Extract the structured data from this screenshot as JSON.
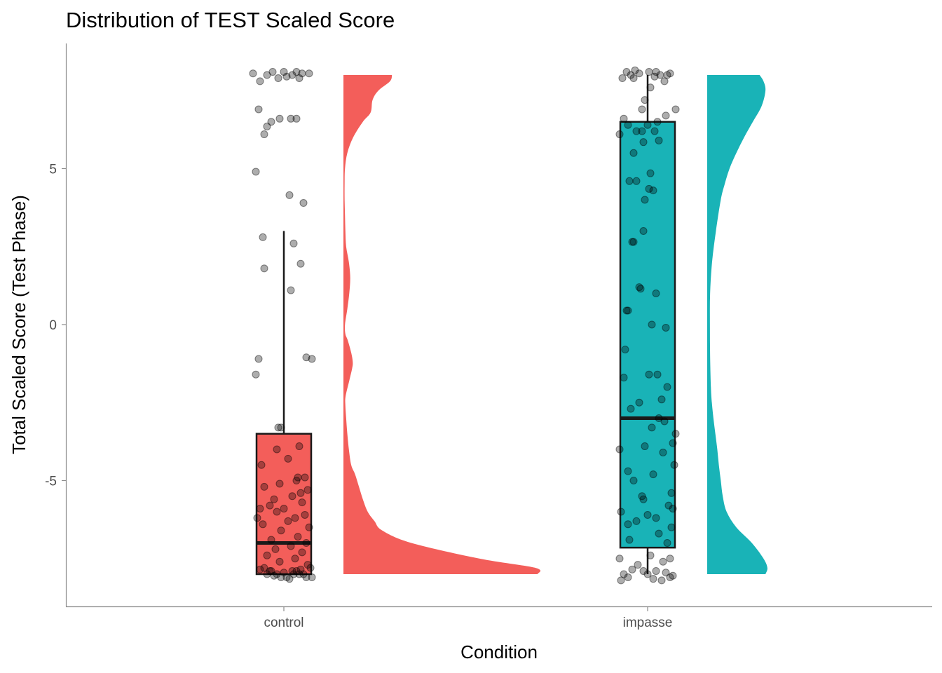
{
  "chart_data": {
    "type": "raincloud",
    "title": "Distribution of TEST Scaled Score",
    "xlabel": "Condition",
    "ylabel": "Total Scaled Score (Test Phase)",
    "ylim": [
      -8.9,
      9.1
    ],
    "yticks": [
      -5,
      0,
      5
    ],
    "ytick_labels": [
      "-5",
      "0",
      "5"
    ],
    "grid": false,
    "legend": "none",
    "point_color": "#000000",
    "box_line_color": "#1a1a1a",
    "axis_color": "#8c8c8c",
    "groups": [
      {
        "category": "control",
        "color": "#F35E5A",
        "box": {
          "lower_whisker": -8,
          "q1": -8,
          "median": -7,
          "q3": -3.5,
          "upper_whisker": 3
        },
        "density": {
          "y": [
            -8.0,
            -7.8,
            -7.5,
            -7.0,
            -6.6,
            -6.3,
            -6.0,
            -5.6,
            -5.2,
            -4.8,
            -4.5,
            -4.0,
            -3.5,
            -3.0,
            -2.6,
            -2.3,
            -1.8,
            -1.4,
            -1.2,
            -0.9,
            -0.5,
            -0.3,
            0.0,
            0.5,
            1.0,
            1.5,
            2.0,
            2.5,
            3.0,
            3.5,
            4.0,
            4.5,
            5.0,
            5.5,
            6.0,
            6.5,
            6.8,
            7.2,
            7.5,
            7.8,
            8.0
          ],
          "width": [
            1.0,
            0.99,
            0.7,
            0.35,
            0.2,
            0.16,
            0.125,
            0.1,
            0.08,
            0.06,
            0.04,
            0.028,
            0.02,
            0.014,
            0.01,
            0.011,
            0.03,
            0.045,
            0.048,
            0.04,
            0.022,
            0.01,
            0.008,
            0.02,
            0.03,
            0.035,
            0.028,
            0.014,
            0.01,
            0.008,
            0.006,
            0.006,
            0.008,
            0.02,
            0.05,
            0.1,
            0.14,
            0.15,
            0.18,
            0.24,
            0.25
          ]
        },
        "points": [
          [
            -7.8,
            -0.14
          ],
          [
            -7.9,
            -0.09
          ],
          [
            -8.0,
            -0.05
          ],
          [
            -8.1,
            0.02
          ],
          [
            -7.9,
            0.06
          ],
          [
            -8.0,
            0.11
          ],
          [
            -8.1,
            0.16
          ],
          [
            -7.8,
            0.19
          ],
          [
            -8.0,
            -0.12
          ],
          [
            -8.1,
            -0.02
          ],
          [
            -7.9,
            0.09
          ],
          [
            -8.0,
            0.14
          ],
          [
            -7.85,
            -0.17
          ],
          [
            -8.05,
            -0.07
          ],
          [
            -7.95,
            0.0
          ],
          [
            -8.15,
            0.04
          ],
          [
            -7.85,
            0.12
          ],
          [
            -8.1,
            0.2
          ],
          [
            -7.9,
            -0.1
          ],
          [
            -8.0,
            0.07
          ],
          [
            -7.7,
            0.17
          ],
          [
            -7.6,
            -0.03
          ],
          [
            -7.5,
            0.08
          ],
          [
            -7.4,
            -0.12
          ],
          [
            -7.3,
            0.13
          ],
          [
            -7.2,
            -0.06
          ],
          [
            -7.1,
            0.05
          ],
          [
            -7.0,
            0.16
          ],
          [
            -6.9,
            -0.09
          ],
          [
            -6.8,
            0.1
          ],
          [
            -6.6,
            -0.02
          ],
          [
            -6.5,
            0.18
          ],
          [
            -6.4,
            -0.15
          ],
          [
            -6.3,
            0.03
          ],
          [
            -6.2,
            -0.19
          ],
          [
            -6.2,
            0.08
          ],
          [
            -6.1,
            0.15
          ],
          [
            -6.0,
            -0.05
          ],
          [
            -5.9,
            -0.17
          ],
          [
            -5.9,
            0.0
          ],
          [
            -5.8,
            -0.1
          ],
          [
            -5.7,
            0.13
          ],
          [
            -5.6,
            -0.07
          ],
          [
            -5.5,
            0.06
          ],
          [
            -5.4,
            0.12
          ],
          [
            -5.3,
            0.17
          ],
          [
            -5.2,
            -0.14
          ],
          [
            -5.1,
            -0.03
          ],
          [
            -5.0,
            0.09
          ],
          [
            -4.9,
            0.1
          ],
          [
            -4.9,
            0.15
          ],
          [
            -4.5,
            -0.16
          ],
          [
            -4.3,
            0.03
          ],
          [
            -4.0,
            -0.05
          ],
          [
            -3.9,
            0.11
          ],
          [
            -3.3,
            -0.04
          ],
          [
            -3.3,
            -0.02
          ],
          [
            -1.6,
            -0.2
          ],
          [
            -1.1,
            -0.18
          ],
          [
            -1.05,
            0.16
          ],
          [
            -1.1,
            0.2
          ],
          [
            1.1,
            0.05
          ],
          [
            1.8,
            -0.14
          ],
          [
            1.95,
            0.12
          ],
          [
            2.6,
            0.07
          ],
          [
            2.8,
            -0.15
          ],
          [
            3.9,
            0.14
          ],
          [
            4.15,
            0.04
          ],
          [
            4.9,
            -0.2
          ],
          [
            6.1,
            -0.14
          ],
          [
            6.35,
            -0.12
          ],
          [
            6.5,
            -0.09
          ],
          [
            6.6,
            -0.03
          ],
          [
            6.6,
            0.05
          ],
          [
            6.6,
            0.09
          ],
          [
            6.9,
            -0.18
          ],
          [
            7.8,
            -0.17
          ],
          [
            7.9,
            -0.04
          ],
          [
            7.9,
            0.11
          ],
          [
            7.95,
            0.02
          ],
          [
            8.0,
            -0.12
          ],
          [
            8.0,
            0.06
          ],
          [
            8.05,
            -0.22
          ],
          [
            8.05,
            0.18
          ],
          [
            8.05,
            0.13
          ],
          [
            8.1,
            -0.08
          ],
          [
            8.1,
            0.0
          ],
          [
            8.1,
            0.09
          ]
        ]
      },
      {
        "category": "impasse",
        "color": "#19B3B7",
        "box": {
          "lower_whisker": -8,
          "q1": -7.15,
          "median": -3,
          "q3": 6.5,
          "upper_whisker": 8
        },
        "density": {
          "y": [
            -8.0,
            -7.8,
            -7.5,
            -7.0,
            -6.5,
            -6.0,
            -5.5,
            -5.0,
            -4.5,
            -4.0,
            -3.5,
            -3.0,
            -2.5,
            -2.0,
            -1.0,
            0.0,
            1.0,
            2.0,
            3.0,
            4.0,
            4.5,
            5.0,
            5.5,
            6.0,
            6.5,
            7.0,
            7.5,
            7.8,
            8.0
          ],
          "width": [
            0.3,
            0.31,
            0.29,
            0.23,
            0.15,
            0.1,
            0.08,
            0.07,
            0.06,
            0.052,
            0.042,
            0.032,
            0.024,
            0.019,
            0.015,
            0.014,
            0.015,
            0.025,
            0.045,
            0.07,
            0.09,
            0.115,
            0.15,
            0.19,
            0.235,
            0.28,
            0.3,
            0.29,
            0.27
          ]
        },
        "points": [
          [
            -8.2,
            -0.19
          ],
          [
            -8.1,
            -0.14
          ],
          [
            -8.15,
            0.04
          ],
          [
            -8.2,
            0.1
          ],
          [
            -8.1,
            0.16
          ],
          [
            -8.0,
            -0.17
          ],
          [
            -8.0,
            0.0
          ],
          [
            -7.9,
            0.06
          ],
          [
            -7.95,
            0.13
          ],
          [
            -7.85,
            -0.11
          ],
          [
            -8.05,
            0.18
          ],
          [
            -7.9,
            -0.03
          ],
          [
            -7.7,
            -0.07
          ],
          [
            -7.6,
            0.11
          ],
          [
            -7.5,
            -0.2
          ],
          [
            -7.5,
            0.16
          ],
          [
            -7.4,
            0.02
          ],
          [
            -7.0,
            0.14
          ],
          [
            -6.9,
            -0.13
          ],
          [
            -6.7,
            0.08
          ],
          [
            -6.5,
            0.17
          ],
          [
            -6.4,
            -0.14
          ],
          [
            -6.3,
            -0.08
          ],
          [
            -6.2,
            0.06
          ],
          [
            -6.1,
            0.0
          ],
          [
            -6.0,
            -0.19
          ],
          [
            -5.9,
            0.18
          ],
          [
            -5.8,
            0.15
          ],
          [
            -5.6,
            -0.03
          ],
          [
            -5.5,
            -0.04
          ],
          [
            -5.4,
            0.17
          ],
          [
            -5.0,
            -0.1
          ],
          [
            -4.8,
            0.04
          ],
          [
            -4.7,
            -0.14
          ],
          [
            -4.5,
            0.19
          ],
          [
            -4.1,
            0.11
          ],
          [
            -4.0,
            -0.2
          ],
          [
            -3.9,
            -0.02
          ],
          [
            -3.8,
            0.18
          ],
          [
            -3.5,
            0.2
          ],
          [
            -3.3,
            0.03
          ],
          [
            -3.1,
            0.12
          ],
          [
            -3.0,
            0.08
          ],
          [
            -2.7,
            -0.12
          ],
          [
            -2.5,
            -0.06
          ],
          [
            -2.4,
            0.1
          ],
          [
            -2.0,
            0.14
          ],
          [
            -1.7,
            -0.17
          ],
          [
            -1.6,
            0.01
          ],
          [
            -1.6,
            0.07
          ],
          [
            -0.8,
            -0.16
          ],
          [
            -0.1,
            0.13
          ],
          [
            0.0,
            0.03
          ],
          [
            0.45,
            -0.14
          ],
          [
            0.45,
            -0.15
          ],
          [
            1.0,
            0.06
          ],
          [
            1.15,
            -0.05
          ],
          [
            1.2,
            -0.06
          ],
          [
            2.65,
            -0.1
          ],
          [
            2.65,
            -0.11
          ],
          [
            3.0,
            -0.03
          ],
          [
            4.35,
            0.01
          ],
          [
            4.3,
            0.04
          ],
          [
            4.6,
            -0.08
          ],
          [
            4.6,
            -0.13
          ],
          [
            4.0,
            -0.02
          ],
          [
            4.85,
            0.02
          ],
          [
            5.5,
            -0.1
          ],
          [
            5.85,
            -0.03
          ],
          [
            5.9,
            0.08
          ],
          [
            6.1,
            -0.2
          ],
          [
            6.2,
            -0.08
          ],
          [
            6.2,
            -0.04
          ],
          [
            6.2,
            0.05
          ],
          [
            6.4,
            -0.14
          ],
          [
            6.4,
            0.0
          ],
          [
            6.5,
            0.07
          ],
          [
            6.6,
            -0.17
          ],
          [
            6.7,
            0.13
          ],
          [
            6.9,
            -0.04
          ],
          [
            6.9,
            0.2
          ],
          [
            7.2,
            -0.02
          ],
          [
            7.6,
            0.02
          ],
          [
            7.8,
            0.12
          ],
          [
            7.9,
            -0.18
          ],
          [
            7.95,
            0.05
          ],
          [
            8.0,
            -0.12
          ],
          [
            8.0,
            0.09
          ],
          [
            8.05,
            -0.06
          ],
          [
            8.05,
            0.16
          ],
          [
            8.1,
            -0.15
          ],
          [
            8.1,
            0.01
          ],
          [
            8.1,
            0.06
          ],
          [
            8.15,
            -0.09
          ],
          [
            8.0,
            0.14
          ],
          [
            7.9,
            -0.1
          ]
        ]
      }
    ]
  }
}
